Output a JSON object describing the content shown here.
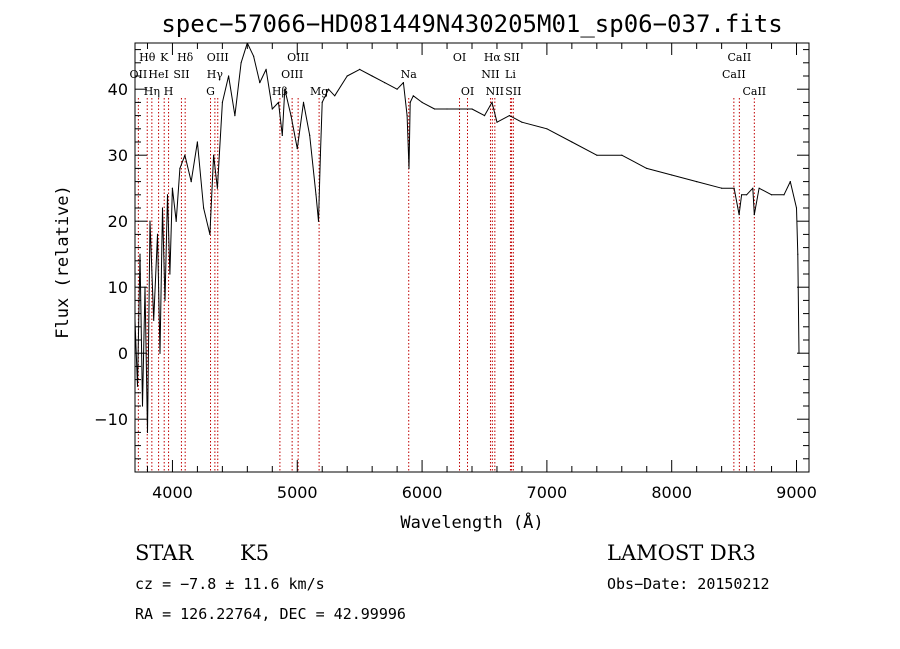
{
  "chart_data": {
    "type": "line",
    "title": "spec−57066−HD081449N430205M01_sp06−037.fits",
    "xlabel": "Wavelength (Å)",
    "ylabel": "Flux (relative)",
    "xlim": [
      3700,
      9100
    ],
    "ylim": [
      -18,
      47
    ],
    "xticks": [
      4000,
      5000,
      6000,
      7000,
      8000,
      9000
    ],
    "yticks": [
      -10,
      0,
      10,
      20,
      30,
      40
    ],
    "xtick_labels": [
      "4000",
      "5000",
      "6000",
      "7000",
      "8000",
      "9000"
    ],
    "ytick_labels": [
      "−10",
      "0",
      "10",
      "20",
      "30",
      "40"
    ],
    "grid": false,
    "line_color": "#000000",
    "marker_color": "#c00000",
    "series": [
      {
        "name": "spectrum",
        "x": [
          3700,
          3720,
          3740,
          3760,
          3780,
          3800,
          3820,
          3850,
          3880,
          3900,
          3920,
          3940,
          3960,
          3980,
          4000,
          4030,
          4060,
          4100,
          4150,
          4200,
          4250,
          4300,
          4330,
          4360,
          4400,
          4450,
          4500,
          4550,
          4600,
          4650,
          4700,
          4750,
          4800,
          4850,
          4880,
          4900,
          4950,
          5000,
          5050,
          5100,
          5150,
          5170,
          5185,
          5200,
          5250,
          5300,
          5400,
          5500,
          5600,
          5700,
          5800,
          5850,
          5880,
          5895,
          5905,
          5930,
          6000,
          6100,
          6200,
          6300,
          6400,
          6500,
          6560,
          6600,
          6700,
          6800,
          7000,
          7200,
          7400,
          7600,
          7800,
          8000,
          8200,
          8400,
          8500,
          8540,
          8560,
          8600,
          8650,
          8662,
          8700,
          8800,
          8900,
          8950,
          9000,
          9010,
          9020
        ],
        "y": [
          5,
          -5,
          15,
          -8,
          10,
          -12,
          20,
          5,
          18,
          0,
          22,
          8,
          24,
          12,
          25,
          20,
          28,
          30,
          26,
          32,
          22,
          18,
          30,
          25,
          38,
          42,
          36,
          44,
          47,
          45,
          41,
          43,
          37,
          38,
          33,
          40,
          36,
          31,
          38,
          33,
          24,
          20,
          30,
          38,
          40,
          39,
          42,
          43,
          42,
          41,
          40,
          41,
          36,
          28,
          38,
          39,
          38,
          37,
          37,
          37,
          37,
          36,
          38,
          35,
          36,
          35,
          34,
          32,
          30,
          30,
          28,
          27,
          26,
          25,
          25,
          21,
          24,
          24,
          25,
          21,
          25,
          24,
          24,
          26,
          22,
          15,
          0
        ]
      }
    ],
    "spectral_lines": [
      {
        "label": "Hθ",
        "wavelength": 3798,
        "row": 1
      },
      {
        "label": "OII",
        "wavelength": 3727,
        "row": 2
      },
      {
        "label": "Hη",
        "wavelength": 3835,
        "row": 3
      },
      {
        "label": "K",
        "wavelength": 3934,
        "row": 1
      },
      {
        "label": "HeI",
        "wavelength": 3889,
        "row": 2
      },
      {
        "label": "H",
        "wavelength": 3969,
        "row": 3
      },
      {
        "label": "Hδ",
        "wavelength": 4102,
        "row": 1
      },
      {
        "label": "SII",
        "wavelength": 4072,
        "row": 2
      },
      {
        "label": "OIII",
        "wavelength": 4363,
        "row": 1
      },
      {
        "label": "Hγ",
        "wavelength": 4340,
        "row": 2
      },
      {
        "label": "G",
        "wavelength": 4305,
        "row": 3
      },
      {
        "label": "OIII",
        "wavelength": 5007,
        "row": 1
      },
      {
        "label": "OIII",
        "wavelength": 4959,
        "row": 2
      },
      {
        "label": "Hβ",
        "wavelength": 4861,
        "row": 3
      },
      {
        "label": "Mg",
        "wavelength": 5175,
        "row": 3
      },
      {
        "label": "Na",
        "wavelength": 5893,
        "row": 2
      },
      {
        "label": "OI",
        "wavelength": 6300,
        "row": 1
      },
      {
        "label": "OI",
        "wavelength": 6364,
        "row": 3
      },
      {
        "label": "Hα",
        "wavelength": 6563,
        "row": 1
      },
      {
        "label": "NII",
        "wavelength": 6548,
        "row": 2
      },
      {
        "label": "NII",
        "wavelength": 6583,
        "row": 3
      },
      {
        "label": "SII",
        "wavelength": 6717,
        "row": 1
      },
      {
        "label": "Li",
        "wavelength": 6708,
        "row": 2
      },
      {
        "label": "SII",
        "wavelength": 6731,
        "row": 3
      },
      {
        "label": "CaII",
        "wavelength": 8542,
        "row": 1
      },
      {
        "label": "CaII",
        "wavelength": 8498,
        "row": 2
      },
      {
        "label": "CaII",
        "wavelength": 8662,
        "row": 3
      }
    ]
  },
  "info": {
    "object_class": "STAR",
    "subclass": "K5",
    "survey": "LAMOST DR3",
    "cz_text": "cz = −7.8 ± 11.6 km/s",
    "obs_date_text": "Obs−Date: 20150212",
    "coords_text": "RA = 126.22764, DEC =  42.99996"
  }
}
